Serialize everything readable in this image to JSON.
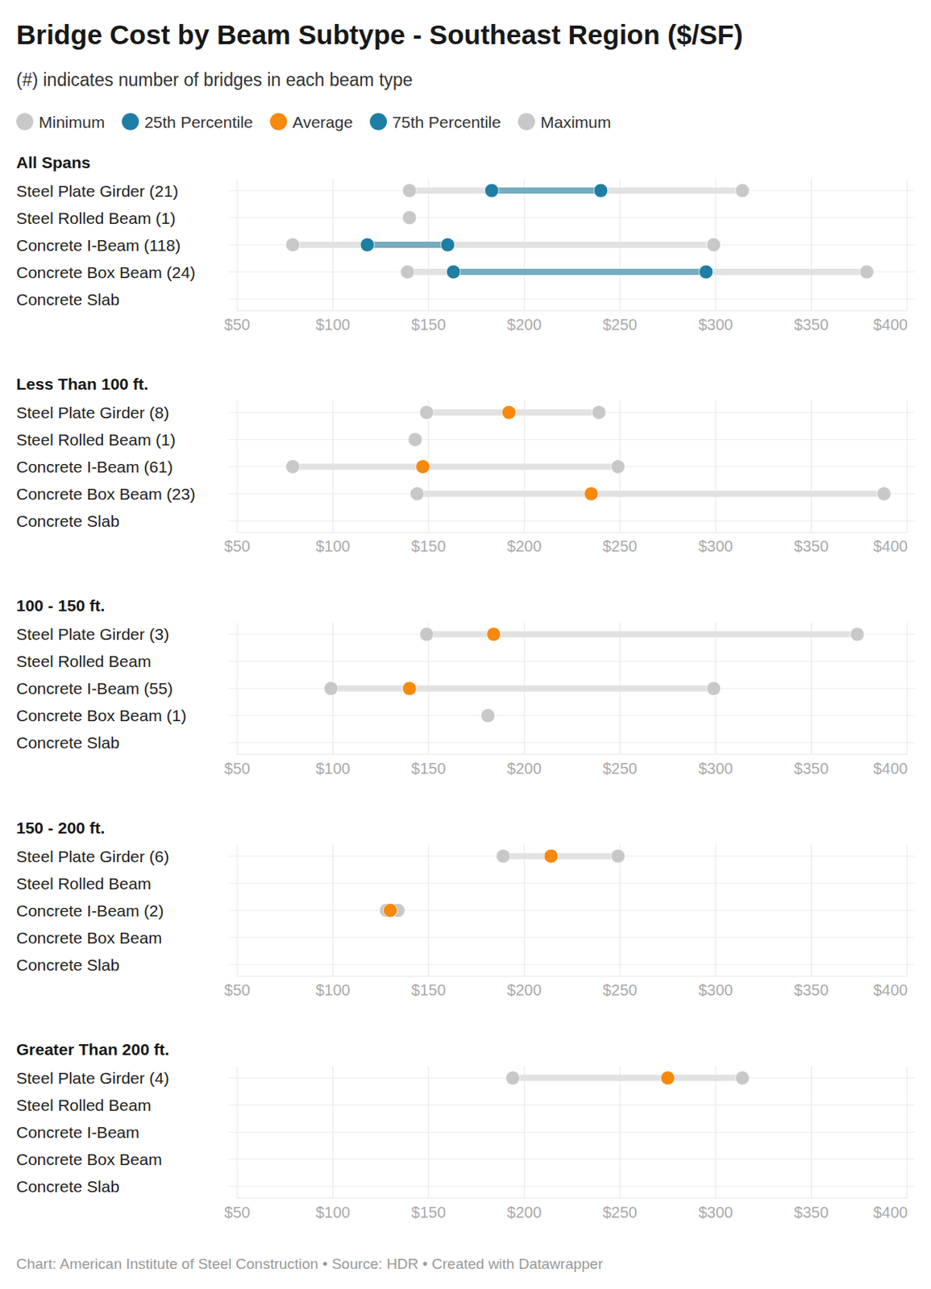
{
  "header": {
    "title": "Bridge Cost by Beam Subtype - Southeast Region ($/SF)",
    "subtitle": "(#) indicates number of bridges in each beam type"
  },
  "footer": {
    "source": "Chart: American Institute of Steel Construction • Source: HDR • Created with Datawrapper"
  },
  "chart_data": [
    {
      "type": "dot",
      "title": "All Spans",
      "orientation": "horizontal",
      "grid": true,
      "legend": "top",
      "categories": [
        "Steel Plate Girder (21)",
        "Steel Rolled Beam (1)",
        "Concrete I-Beam (118)",
        "Concrete Box Beam (24)",
        "Concrete Slab"
      ],
      "series": [
        {
          "name": "Minimum",
          "color": "#c8c8c8",
          "values": [
            140,
            140,
            79,
            139,
            null
          ]
        },
        {
          "name": "25th Percentile",
          "color": "#1d7fa3",
          "values": [
            183,
            null,
            118,
            163,
            null
          ]
        },
        {
          "name": "Average",
          "color": "#f7890c",
          "values": [
            null,
            null,
            null,
            null,
            null
          ]
        },
        {
          "name": "75th Percentile",
          "color": "#1d7fa3",
          "values": [
            240,
            null,
            160,
            295,
            null
          ]
        },
        {
          "name": "Maximum",
          "color": "#c8c8c8",
          "values": [
            314,
            140,
            299,
            379,
            null
          ]
        }
      ],
      "xlim": [
        50,
        400
      ],
      "xticks": [
        {
          "value": 50,
          "label": "$50"
        },
        {
          "value": 100,
          "label": "$100"
        },
        {
          "value": 150,
          "label": "$150"
        },
        {
          "value": 200,
          "label": "$200"
        },
        {
          "value": 250,
          "label": "$250"
        },
        {
          "value": 300,
          "label": "$300"
        },
        {
          "value": 350,
          "label": "$350"
        },
        {
          "value": 400,
          "label": "$400"
        }
      ]
    },
    {
      "type": "dot",
      "title": "Less Than 100 ft.",
      "orientation": "horizontal",
      "grid": true,
      "categories": [
        "Steel Plate Girder (8)",
        "Steel Rolled Beam (1)",
        "Concrete I-Beam (61)",
        "Concrete Box Beam (23)",
        "Concrete Slab"
      ],
      "series": [
        {
          "name": "Minimum",
          "color": "#c8c8c8",
          "values": [
            149,
            143,
            79,
            144,
            null
          ]
        },
        {
          "name": "25th Percentile",
          "color": "#1d7fa3",
          "values": [
            null,
            null,
            null,
            null,
            null
          ]
        },
        {
          "name": "Average",
          "color": "#f7890c",
          "values": [
            192,
            null,
            147,
            235,
            null
          ]
        },
        {
          "name": "75th Percentile",
          "color": "#1d7fa3",
          "values": [
            null,
            null,
            null,
            null,
            null
          ]
        },
        {
          "name": "Maximum",
          "color": "#c8c8c8",
          "values": [
            239,
            143,
            249,
            388,
            null
          ]
        }
      ],
      "xlim": [
        50,
        400
      ],
      "xticks": [
        {
          "value": 50,
          "label": "$50"
        },
        {
          "value": 100,
          "label": "$100"
        },
        {
          "value": 150,
          "label": "$150"
        },
        {
          "value": 200,
          "label": "$200"
        },
        {
          "value": 250,
          "label": "$250"
        },
        {
          "value": 300,
          "label": "$300"
        },
        {
          "value": 350,
          "label": "$350"
        },
        {
          "value": 400,
          "label": "$400"
        }
      ]
    },
    {
      "type": "dot",
      "title": "100 - 150 ft.",
      "orientation": "horizontal",
      "grid": true,
      "categories": [
        "Steel Plate Girder (3)",
        "Steel Rolled Beam",
        "Concrete I-Beam (55)",
        "Concrete Box Beam (1)",
        "Concrete Slab"
      ],
      "series": [
        {
          "name": "Minimum",
          "color": "#c8c8c8",
          "values": [
            149,
            null,
            99,
            181,
            null
          ]
        },
        {
          "name": "25th Percentile",
          "color": "#1d7fa3",
          "values": [
            null,
            null,
            null,
            null,
            null
          ]
        },
        {
          "name": "Average",
          "color": "#f7890c",
          "values": [
            184,
            null,
            140,
            null,
            null
          ]
        },
        {
          "name": "75th Percentile",
          "color": "#1d7fa3",
          "values": [
            null,
            null,
            null,
            null,
            null
          ]
        },
        {
          "name": "Maximum",
          "color": "#c8c8c8",
          "values": [
            374,
            null,
            299,
            181,
            null
          ]
        }
      ],
      "xlim": [
        50,
        400
      ],
      "xticks": [
        {
          "value": 50,
          "label": "$50"
        },
        {
          "value": 100,
          "label": "$100"
        },
        {
          "value": 150,
          "label": "$150"
        },
        {
          "value": 200,
          "label": "$200"
        },
        {
          "value": 250,
          "label": "$250"
        },
        {
          "value": 300,
          "label": "$300"
        },
        {
          "value": 350,
          "label": "$350"
        },
        {
          "value": 400,
          "label": "$400"
        }
      ]
    },
    {
      "type": "dot",
      "title": "150 - 200 ft.",
      "orientation": "horizontal",
      "grid": true,
      "categories": [
        "Steel Plate Girder (6)",
        "Steel Rolled Beam",
        "Concrete I-Beam (2)",
        "Concrete Box Beam",
        "Concrete Slab"
      ],
      "series": [
        {
          "name": "Minimum",
          "color": "#c8c8c8",
          "values": [
            189,
            null,
            128,
            null,
            null
          ]
        },
        {
          "name": "25th Percentile",
          "color": "#1d7fa3",
          "values": [
            null,
            null,
            null,
            null,
            null
          ]
        },
        {
          "name": "Average",
          "color": "#f7890c",
          "values": [
            214,
            null,
            130,
            null,
            null
          ]
        },
        {
          "name": "75th Percentile",
          "color": "#1d7fa3",
          "values": [
            null,
            null,
            null,
            null,
            null
          ]
        },
        {
          "name": "Maximum",
          "color": "#c8c8c8",
          "values": [
            249,
            null,
            134,
            null,
            null
          ]
        }
      ],
      "xlim": [
        50,
        400
      ],
      "xticks": [
        {
          "value": 50,
          "label": "$50"
        },
        {
          "value": 100,
          "label": "$100"
        },
        {
          "value": 150,
          "label": "$150"
        },
        {
          "value": 200,
          "label": "$200"
        },
        {
          "value": 250,
          "label": "$250"
        },
        {
          "value": 300,
          "label": "$300"
        },
        {
          "value": 350,
          "label": "$350"
        },
        {
          "value": 400,
          "label": "$400"
        }
      ]
    },
    {
      "type": "dot",
      "title": "Greater Than 200 ft.",
      "orientation": "horizontal",
      "grid": true,
      "categories": [
        "Steel Plate Girder (4)",
        "Steel Rolled Beam",
        "Concrete I-Beam",
        "Concrete Box Beam",
        "Concrete Slab"
      ],
      "series": [
        {
          "name": "Minimum",
          "color": "#c8c8c8",
          "values": [
            194,
            null,
            null,
            null,
            null
          ]
        },
        {
          "name": "25th Percentile",
          "color": "#1d7fa3",
          "values": [
            null,
            null,
            null,
            null,
            null
          ]
        },
        {
          "name": "Average",
          "color": "#f7890c",
          "values": [
            275,
            null,
            null,
            null,
            null
          ]
        },
        {
          "name": "75th Percentile",
          "color": "#1d7fa3",
          "values": [
            null,
            null,
            null,
            null,
            null
          ]
        },
        {
          "name": "Maximum",
          "color": "#c8c8c8",
          "values": [
            314,
            null,
            null,
            null,
            null
          ]
        }
      ],
      "xlim": [
        50,
        400
      ],
      "xticks": [
        {
          "value": 50,
          "label": "$50"
        },
        {
          "value": 100,
          "label": "$100"
        },
        {
          "value": 150,
          "label": "$150"
        },
        {
          "value": 200,
          "label": "$200"
        },
        {
          "value": 250,
          "label": "$250"
        },
        {
          "value": 300,
          "label": "$300"
        },
        {
          "value": 350,
          "label": "$350"
        },
        {
          "value": 400,
          "label": "$400"
        }
      ]
    }
  ]
}
